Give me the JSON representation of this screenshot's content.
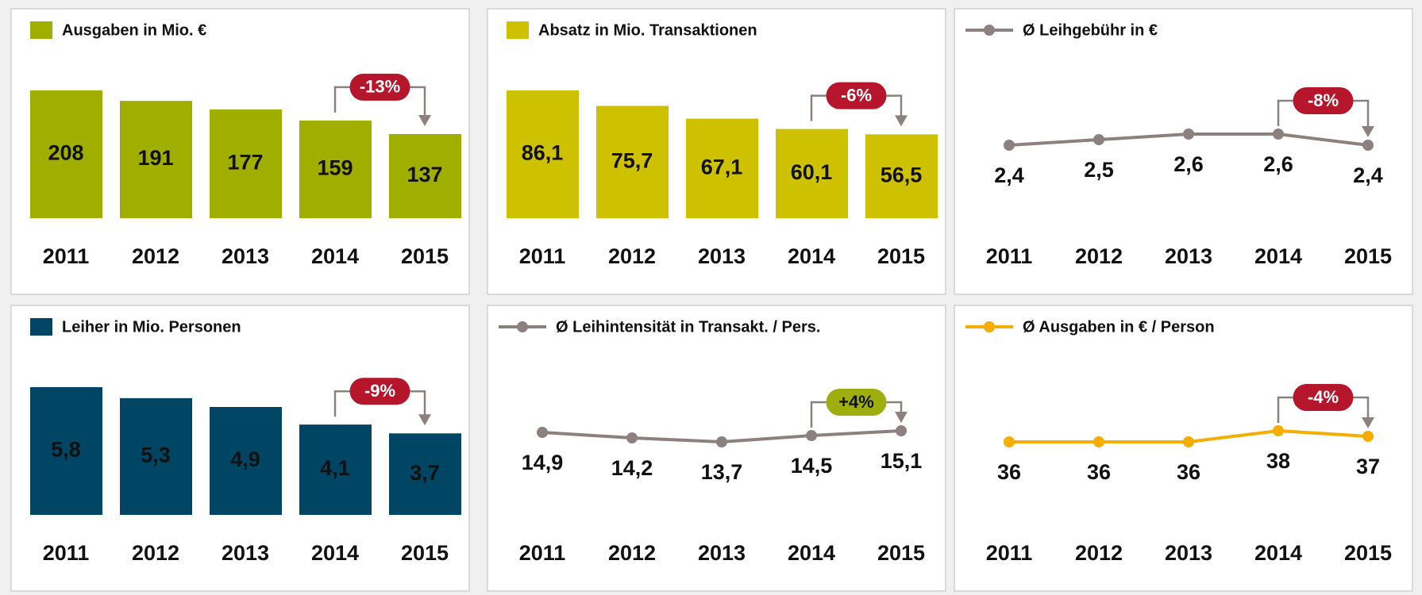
{
  "chart_data": [
    {
      "type": "bar",
      "title": "Ausgaben in Mio. €",
      "color": "#a0ae00",
      "categories": [
        "2011",
        "2012",
        "2013",
        "2014",
        "2015"
      ],
      "values": [
        208,
        191,
        177,
        159,
        137
      ],
      "annotation": "-13%",
      "annotation_color": "#b5162b"
    },
    {
      "type": "bar",
      "title": "Absatz in Mio. Transaktionen",
      "color": "#cdc100",
      "categories": [
        "2011",
        "2012",
        "2013",
        "2014",
        "2015"
      ],
      "values": [
        86.1,
        75.7,
        67.1,
        60.1,
        56.5
      ],
      "value_labels": [
        "86,1",
        "75,7",
        "67,1",
        "60,1",
        "56,5"
      ],
      "annotation": "-6%",
      "annotation_color": "#b5162b"
    },
    {
      "type": "line",
      "title": "Ø Leihgebühr in €",
      "color": "#8c817e",
      "categories": [
        "2011",
        "2012",
        "2013",
        "2014",
        "2015"
      ],
      "values": [
        2.4,
        2.5,
        2.6,
        2.6,
        2.4
      ],
      "value_labels": [
        "2,4",
        "2,5",
        "2,6",
        "2,6",
        "2,4"
      ],
      "annotation": "-8%",
      "annotation_color": "#b5162b"
    },
    {
      "type": "bar",
      "title": "Leiher in Mio. Personen",
      "color": "#004563",
      "categories": [
        "2011",
        "2012",
        "2013",
        "2014",
        "2015"
      ],
      "values": [
        5.8,
        5.3,
        4.9,
        4.1,
        3.7
      ],
      "value_labels": [
        "5,8",
        "5,3",
        "4,9",
        "4,1",
        "3,7"
      ],
      "annotation": "-9%",
      "annotation_color": "#b5162b"
    },
    {
      "type": "line",
      "title": "Ø Leihintensität in Transakt. / Pers.",
      "color": "#8c817e",
      "categories": [
        "2011",
        "2012",
        "2013",
        "2014",
        "2015"
      ],
      "values": [
        14.9,
        14.2,
        13.7,
        14.5,
        15.1
      ],
      "value_labels": [
        "14,9",
        "14,2",
        "13,7",
        "14,5",
        "15,1"
      ],
      "annotation": "+4%",
      "annotation_color": "#9fae0f"
    },
    {
      "type": "line",
      "title": "Ø Ausgaben in € / Person",
      "color": "#f5ae00",
      "categories": [
        "2011",
        "2012",
        "2013",
        "2014",
        "2015"
      ],
      "values": [
        36,
        36,
        36,
        38,
        37
      ],
      "annotation": "-4%",
      "annotation_color": "#b5162b"
    }
  ]
}
